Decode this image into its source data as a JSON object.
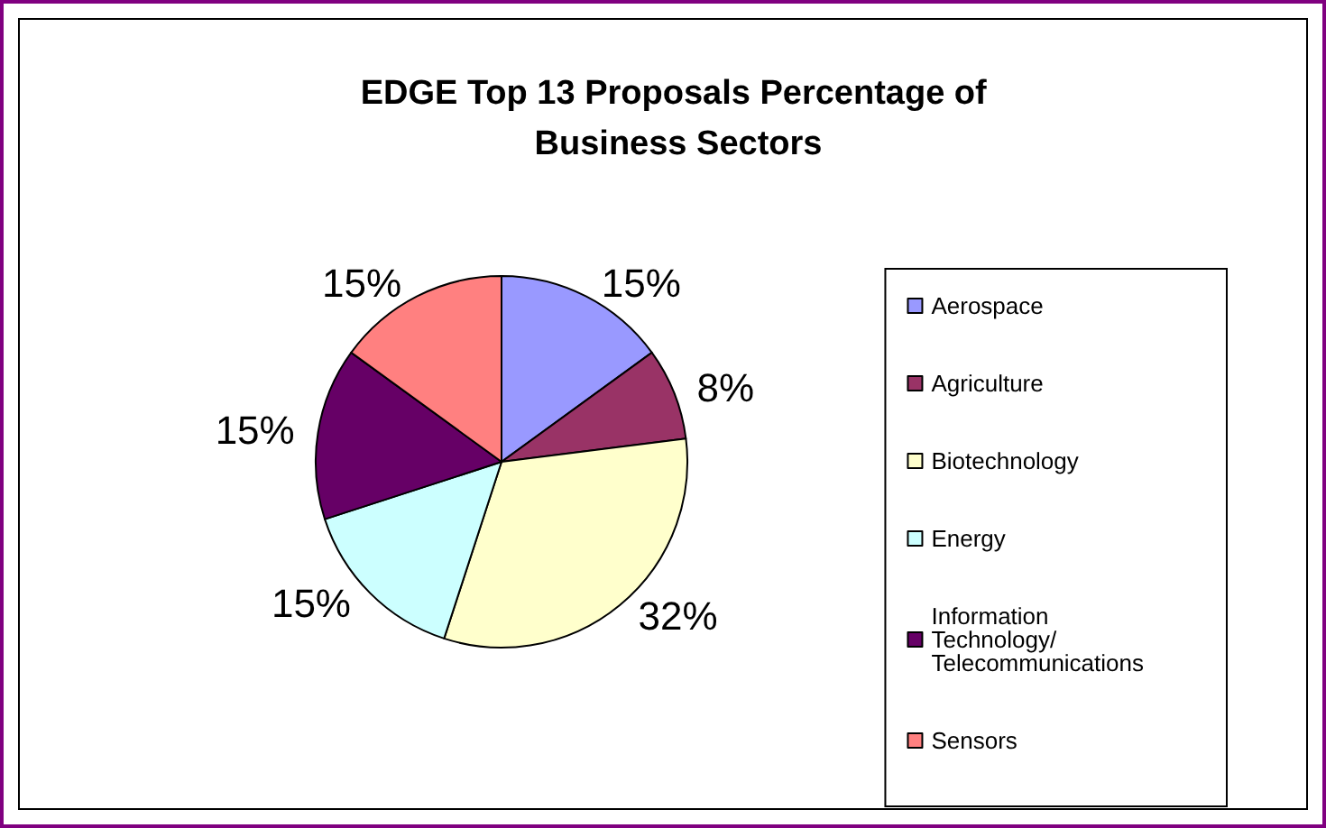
{
  "chart_data": {
    "type": "pie",
    "title": "EDGE Top 13 Proposals Percentage of Business Sectors",
    "categories": [
      "Aerospace",
      "Agriculture",
      "Biotechnology",
      "Energy",
      "Information Technology/ Telecommunications",
      "Sensors"
    ],
    "values": [
      15,
      8,
      32,
      15,
      15,
      15
    ],
    "colors": [
      "#9999ff",
      "#993366",
      "#ffffcc",
      "#ccffff",
      "#660066",
      "#ff8080"
    ],
    "value_labels": [
      "15%",
      "8%",
      "32%",
      "15%",
      "15%",
      "15%"
    ],
    "legend": "right"
  }
}
